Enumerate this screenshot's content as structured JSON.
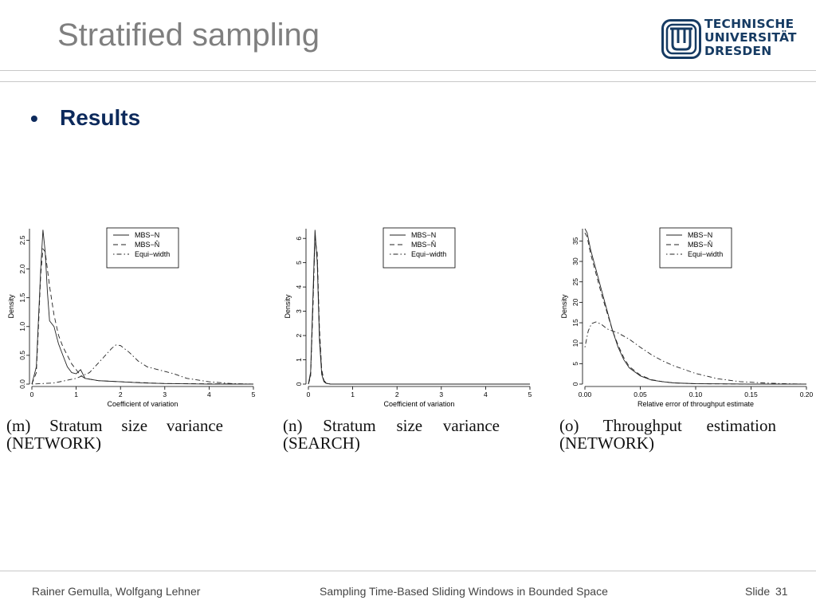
{
  "slide": {
    "title": "Stratified sampling",
    "logo_lines": [
      "TECHNISCHE",
      "UNIVERSITÄT",
      "DRESDEN"
    ],
    "bullet": "•",
    "bullet_text": "Results",
    "brand_color": "#163b63"
  },
  "footer": {
    "authors": "Rainer Gemulla, Wolfgang Lehner",
    "talk_title": "Sampling Time-Based Sliding Windows in Bounded Space",
    "slide_label": "Slide",
    "slide_number": "31"
  },
  "chart_data": [
    {
      "type": "line",
      "caption": "(m) Stratum size variance (NETWORK)",
      "xlabel": "Coefficient of variation",
      "ylabel": "Density",
      "xlim": [
        0,
        5
      ],
      "ylim": [
        0,
        2.7
      ],
      "xticks": [
        "0",
        "1",
        "2",
        "3",
        "4",
        "5"
      ],
      "yticks": [
        "0.0",
        "0.5",
        "1.0",
        "1.5",
        "2.0",
        "2.5"
      ],
      "legend_position": "top-right",
      "series": [
        {
          "name": "MBS−N",
          "style": "solid",
          "x": [
            0,
            0.1,
            0.2,
            0.25,
            0.3,
            0.35,
            0.4,
            0.5,
            0.6,
            0.7,
            0.8,
            0.9,
            1.0,
            1.1,
            1.2,
            1.5,
            2.0,
            2.5,
            3.0,
            4.0,
            5.0
          ],
          "y": [
            0,
            0.3,
            2.0,
            2.68,
            2.3,
            1.6,
            1.1,
            1.0,
            0.7,
            0.5,
            0.3,
            0.2,
            0.18,
            0.25,
            0.1,
            0.06,
            0.04,
            0.02,
            0.01,
            0,
            0
          ]
        },
        {
          "name": "MBS−N̂",
          "style": "dashed",
          "x": [
            0,
            0.1,
            0.15,
            0.2,
            0.25,
            0.3,
            0.4,
            0.5,
            0.6,
            0.7,
            0.8,
            0.9,
            1.0,
            1.1,
            1.2,
            1.5,
            2.0,
            3.0,
            5.0
          ],
          "y": [
            0,
            0.2,
            1.0,
            1.9,
            2.35,
            2.3,
            1.7,
            1.2,
            0.85,
            0.65,
            0.5,
            0.35,
            0.25,
            0.15,
            0.1,
            0.06,
            0.04,
            0.01,
            0
          ]
        },
        {
          "name": "Equi−width",
          "style": "dotdash",
          "x": [
            0,
            0.5,
            1.0,
            1.3,
            1.6,
            1.8,
            1.9,
            2.0,
            2.2,
            2.4,
            2.6,
            2.8,
            3.0,
            3.2,
            3.5,
            4.0,
            4.5,
            5.0
          ],
          "y": [
            0,
            0.02,
            0.1,
            0.2,
            0.45,
            0.62,
            0.68,
            0.67,
            0.55,
            0.4,
            0.3,
            0.26,
            0.22,
            0.18,
            0.1,
            0.04,
            0.01,
            0
          ]
        }
      ]
    },
    {
      "type": "line",
      "caption": "(n) Stratum size variance (SEARCH)",
      "xlabel": "Coefficient of variation",
      "ylabel": "Density",
      "xlim": [
        0,
        5
      ],
      "ylim": [
        0,
        6.4
      ],
      "xticks": [
        "0",
        "1",
        "2",
        "3",
        "4",
        "5"
      ],
      "yticks": [
        "0",
        "1",
        "2",
        "3",
        "4",
        "5",
        "6"
      ],
      "legend_position": "top-right",
      "series": [
        {
          "name": "MBS−N",
          "style": "solid",
          "x": [
            0,
            0.05,
            0.1,
            0.15,
            0.2,
            0.25,
            0.3,
            0.35,
            0.4,
            0.5,
            1.0,
            5.0
          ],
          "y": [
            0,
            0.5,
            3.5,
            6.35,
            5.0,
            1.8,
            0.4,
            0.1,
            0.03,
            0,
            0,
            0
          ]
        },
        {
          "name": "MBS−N̂",
          "style": "dashed",
          "x": [
            0,
            0.05,
            0.1,
            0.15,
            0.2,
            0.25,
            0.3,
            0.35,
            0.4,
            0.5,
            1.0,
            5.0
          ],
          "y": [
            0,
            0.3,
            3.0,
            6.0,
            5.4,
            2.3,
            0.6,
            0.15,
            0.05,
            0,
            0,
            0
          ]
        },
        {
          "name": "Equi−width",
          "style": "dotdash",
          "x": [
            0,
            0.05,
            0.1,
            0.15,
            0.2,
            0.25,
            0.3,
            0.35,
            0.4,
            0.5,
            1.0,
            5.0
          ],
          "y": [
            0,
            0.4,
            3.2,
            6.1,
            5.2,
            2.0,
            0.5,
            0.12,
            0.04,
            0,
            0,
            0
          ]
        }
      ]
    },
    {
      "type": "line",
      "caption": "(o) Throughput estimation (NETWORK)",
      "xlabel": "Relative error of throughput estimate",
      "ylabel": "Density",
      "xlim": [
        0,
        0.2
      ],
      "ylim": [
        0,
        38
      ],
      "xticks": [
        "0.00",
        "0.05",
        "0.10",
        "0.15",
        "0.20"
      ],
      "yticks": [
        "0",
        "5",
        "10",
        "15",
        "20",
        "25",
        "30",
        "35"
      ],
      "legend_position": "top-right",
      "series": [
        {
          "name": "MBS−N",
          "style": "solid",
          "x": [
            0,
            0.002,
            0.005,
            0.01,
            0.015,
            0.02,
            0.025,
            0.03,
            0.035,
            0.04,
            0.05,
            0.06,
            0.07,
            0.08,
            0.1,
            0.12,
            0.15,
            0.2
          ],
          "y": [
            38,
            37,
            33,
            28,
            23,
            18,
            13,
            9,
            6,
            4,
            2,
            1,
            0.6,
            0.3,
            0.1,
            0.05,
            0,
            0
          ]
        },
        {
          "name": "MBS−N̂",
          "style": "dashed",
          "x": [
            0,
            0.002,
            0.005,
            0.01,
            0.015,
            0.02,
            0.025,
            0.03,
            0.035,
            0.04,
            0.05,
            0.06,
            0.07,
            0.08,
            0.1,
            0.12,
            0.15,
            0.2
          ],
          "y": [
            37,
            36,
            32,
            27,
            22,
            17.5,
            13,
            9.5,
            6.5,
            4.3,
            2.2,
            1.1,
            0.6,
            0.3,
            0.1,
            0.05,
            0,
            0
          ]
        },
        {
          "name": "Equi−width",
          "style": "dotdash",
          "x": [
            0,
            0.003,
            0.006,
            0.01,
            0.015,
            0.02,
            0.03,
            0.04,
            0.05,
            0.06,
            0.07,
            0.08,
            0.1,
            0.12,
            0.14,
            0.16,
            0.18,
            0.2
          ],
          "y": [
            9,
            13,
            14.8,
            15.2,
            14.6,
            13.5,
            12.5,
            11,
            9,
            7.2,
            5.7,
            4.5,
            2.6,
            1.3,
            0.6,
            0.3,
            0.1,
            0
          ]
        }
      ]
    }
  ]
}
